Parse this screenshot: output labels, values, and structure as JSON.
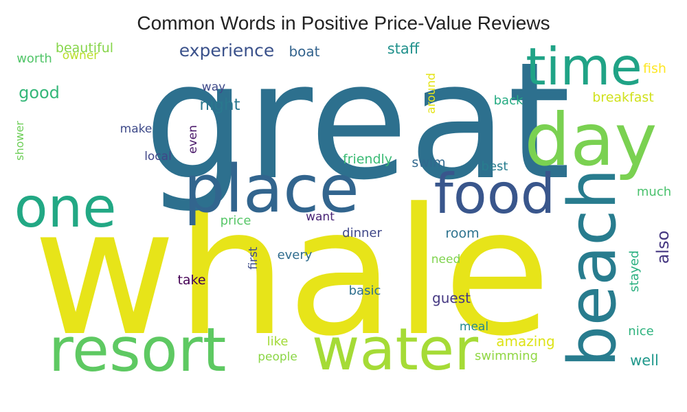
{
  "chart_data": {
    "type": "wordcloud",
    "title": "Common Words in Positive Price-Value Reviews",
    "colormap": "viridis",
    "words": [
      {
        "text": "whale",
        "weight": 100,
        "color": "#e7e419"
      },
      {
        "text": "great",
        "weight": 92,
        "color": "#2d708e"
      },
      {
        "text": "beach",
        "weight": 45,
        "color": "#287c8e"
      },
      {
        "text": "place",
        "weight": 40,
        "color": "#32658e"
      },
      {
        "text": "day",
        "weight": 38,
        "color": "#7ad151"
      },
      {
        "text": "resort",
        "weight": 35,
        "color": "#5ec962"
      },
      {
        "text": "water",
        "weight": 35,
        "color": "#a5db36"
      },
      {
        "text": "food",
        "weight": 32,
        "color": "#39568c"
      },
      {
        "text": "one",
        "weight": 30,
        "color": "#22a884"
      },
      {
        "text": "time",
        "weight": 28,
        "color": "#20a386"
      },
      {
        "text": "experience",
        "weight": 12,
        "color": "#3b528b"
      },
      {
        "text": "also",
        "weight": 11,
        "color": "#453781"
      },
      {
        "text": "good",
        "weight": 10,
        "color": "#35b779"
      },
      {
        "text": "night",
        "weight": 10,
        "color": "#2a788e"
      },
      {
        "text": "staff",
        "weight": 9,
        "color": "#21918c"
      },
      {
        "text": "well",
        "weight": 9,
        "color": "#1f988b"
      },
      {
        "text": "boat",
        "weight": 9,
        "color": "#33638d"
      },
      {
        "text": "amazing",
        "weight": 9,
        "color": "#dde318"
      },
      {
        "text": "guest",
        "weight": 9,
        "color": "#453882"
      },
      {
        "text": "beautiful",
        "weight": 8,
        "color": "#86d549"
      },
      {
        "text": "friendly",
        "weight": 8,
        "color": "#3bbb75"
      },
      {
        "text": "fish",
        "weight": 8,
        "color": "#fde725"
      },
      {
        "text": "breakfast",
        "weight": 8,
        "color": "#d0e11c"
      },
      {
        "text": "take",
        "weight": 8,
        "color": "#440154"
      },
      {
        "text": "swim",
        "weight": 8,
        "color": "#31688e"
      },
      {
        "text": "best",
        "weight": 8,
        "color": "#287d8e"
      },
      {
        "text": "room",
        "weight": 8,
        "color": "#2c728e"
      },
      {
        "text": "nice",
        "weight": 8,
        "color": "#2db27d"
      },
      {
        "text": "stayed",
        "weight": 8,
        "color": "#29af7f"
      },
      {
        "text": "swimming",
        "weight": 8,
        "color": "#90d743"
      },
      {
        "text": "worth",
        "weight": 7,
        "color": "#52c569"
      },
      {
        "text": "owner",
        "weight": 7,
        "color": "#b8de29"
      },
      {
        "text": "way",
        "weight": 7,
        "color": "#3e4989"
      },
      {
        "text": "back",
        "weight": 7,
        "color": "#25ab82"
      },
      {
        "text": "around",
        "weight": 7,
        "color": "#e5e419"
      },
      {
        "text": "make",
        "weight": 7,
        "color": "#3e4a89"
      },
      {
        "text": "even",
        "weight": 7,
        "color": "#481668"
      },
      {
        "text": "local",
        "weight": 7,
        "color": "#404688"
      },
      {
        "text": "shower",
        "weight": 7,
        "color": "#6ece58"
      },
      {
        "text": "much",
        "weight": 7,
        "color": "#4ac16d"
      },
      {
        "text": "price",
        "weight": 7,
        "color": "#56c667"
      },
      {
        "text": "want",
        "weight": 7,
        "color": "#482475"
      },
      {
        "text": "dinner",
        "weight": 7,
        "color": "#3f4788"
      },
      {
        "text": "first",
        "weight": 7,
        "color": "#3e4c8a"
      },
      {
        "text": "every",
        "weight": 7,
        "color": "#2f6c8e"
      },
      {
        "text": "need",
        "weight": 7,
        "color": "#7fd34e"
      },
      {
        "text": "basic",
        "weight": 7,
        "color": "#2e6f8e"
      },
      {
        "text": "meal",
        "weight": 7,
        "color": "#23898e"
      },
      {
        "text": "like",
        "weight": 7,
        "color": "#a2da37"
      },
      {
        "text": "people",
        "weight": 7,
        "color": "#8bd646"
      }
    ]
  }
}
